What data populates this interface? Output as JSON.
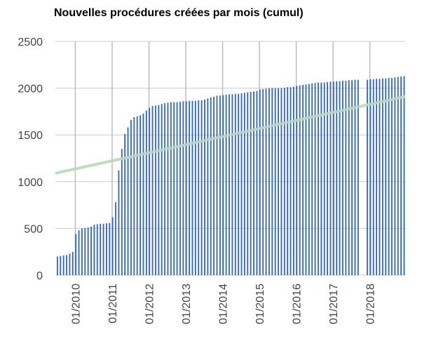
{
  "chart_data": {
    "type": "bar",
    "title": "Nouvelles procédures créées par mois (cumul)",
    "ylim": [
      0,
      2500
    ],
    "yticks": [
      0,
      500,
      1000,
      1500,
      2000,
      2500
    ],
    "xtick_labels": [
      "01/2010",
      "01/2011",
      "01/2012",
      "01/2013",
      "01/2014",
      "01/2015",
      "01/2016",
      "01/2017",
      "01/2018"
    ],
    "xtick_index": [
      6,
      18,
      30,
      42,
      54,
      66,
      78,
      90,
      102
    ],
    "categories": [
      "2009-07",
      "2009-08",
      "2009-09",
      "2009-10",
      "2009-11",
      "2009-12",
      "2010-01",
      "2010-02",
      "2010-03",
      "2010-04",
      "2010-05",
      "2010-06",
      "2010-07",
      "2010-08",
      "2010-09",
      "2010-10",
      "2010-11",
      "2010-12",
      "2011-01",
      "2011-02",
      "2011-03",
      "2011-04",
      "2011-05",
      "2011-06",
      "2011-07",
      "2011-08",
      "2011-09",
      "2011-10",
      "2011-11",
      "2011-12",
      "2012-01",
      "2012-02",
      "2012-03",
      "2012-04",
      "2012-05",
      "2012-06",
      "2012-07",
      "2012-08",
      "2012-09",
      "2012-10",
      "2012-11",
      "2012-12",
      "2013-01",
      "2013-02",
      "2013-03",
      "2013-04",
      "2013-05",
      "2013-06",
      "2013-07",
      "2013-08",
      "2013-09",
      "2013-10",
      "2013-11",
      "2013-12",
      "2014-01",
      "2014-02",
      "2014-03",
      "2014-04",
      "2014-05",
      "2014-06",
      "2014-07",
      "2014-08",
      "2014-09",
      "2014-10",
      "2014-11",
      "2014-12",
      "2015-01",
      "2015-02",
      "2015-03",
      "2015-04",
      "2015-05",
      "2015-06",
      "2015-07",
      "2015-08",
      "2015-09",
      "2015-10",
      "2015-11",
      "2015-12",
      "2016-01",
      "2016-02",
      "2016-03",
      "2016-04",
      "2016-05",
      "2016-06",
      "2016-07",
      "2016-08",
      "2016-09",
      "2016-10",
      "2016-11",
      "2016-12",
      "2017-01",
      "2017-02",
      "2017-03",
      "2017-04",
      "2017-05",
      "2017-06",
      "2017-07",
      "2017-08",
      "2017-09",
      "2017-10",
      "2017-11",
      "2017-12",
      "2018-01",
      "2018-02",
      "2018-03",
      "2018-04",
      "2018-05",
      "2018-06",
      "2018-07",
      "2018-08",
      "2018-09",
      "2018-10",
      "2018-11",
      "2018-12"
    ],
    "values": [
      200,
      205,
      210,
      215,
      230,
      250,
      440,
      480,
      500,
      505,
      510,
      520,
      540,
      545,
      550,
      550,
      555,
      560,
      620,
      780,
      1120,
      1350,
      1510,
      1580,
      1660,
      1690,
      1700,
      1710,
      1730,
      1760,
      1790,
      1810,
      1815,
      1820,
      1830,
      1840,
      1845,
      1850,
      1850,
      1850,
      1855,
      1860,
      1860,
      1865,
      1865,
      1865,
      1870,
      1870,
      1880,
      1890,
      1900,
      1910,
      1920,
      1920,
      1925,
      1930,
      1935,
      1935,
      1940,
      1940,
      1945,
      1950,
      1955,
      1960,
      1965,
      1970,
      1985,
      1990,
      1995,
      2000,
      2000,
      2000,
      2000,
      2000,
      2005,
      2010,
      2010,
      2015,
      2025,
      2030,
      2035,
      2040,
      2045,
      2050,
      2055,
      2060,
      2060,
      2060,
      2065,
      2070,
      2070,
      2075,
      2075,
      2080,
      2080,
      2085,
      2085,
      2090,
      2090,
      0,
      0,
      2090,
      2095,
      2095,
      2100,
      2100,
      2105,
      2105,
      2110,
      2110,
      2115,
      2120,
      2125,
      2130
    ],
    "trendline": {
      "start": 1090,
      "end": 1910
    },
    "colors": {
      "bar": "#3366cc",
      "trend": "#b7dab5",
      "grid": "#cccccc"
    }
  }
}
